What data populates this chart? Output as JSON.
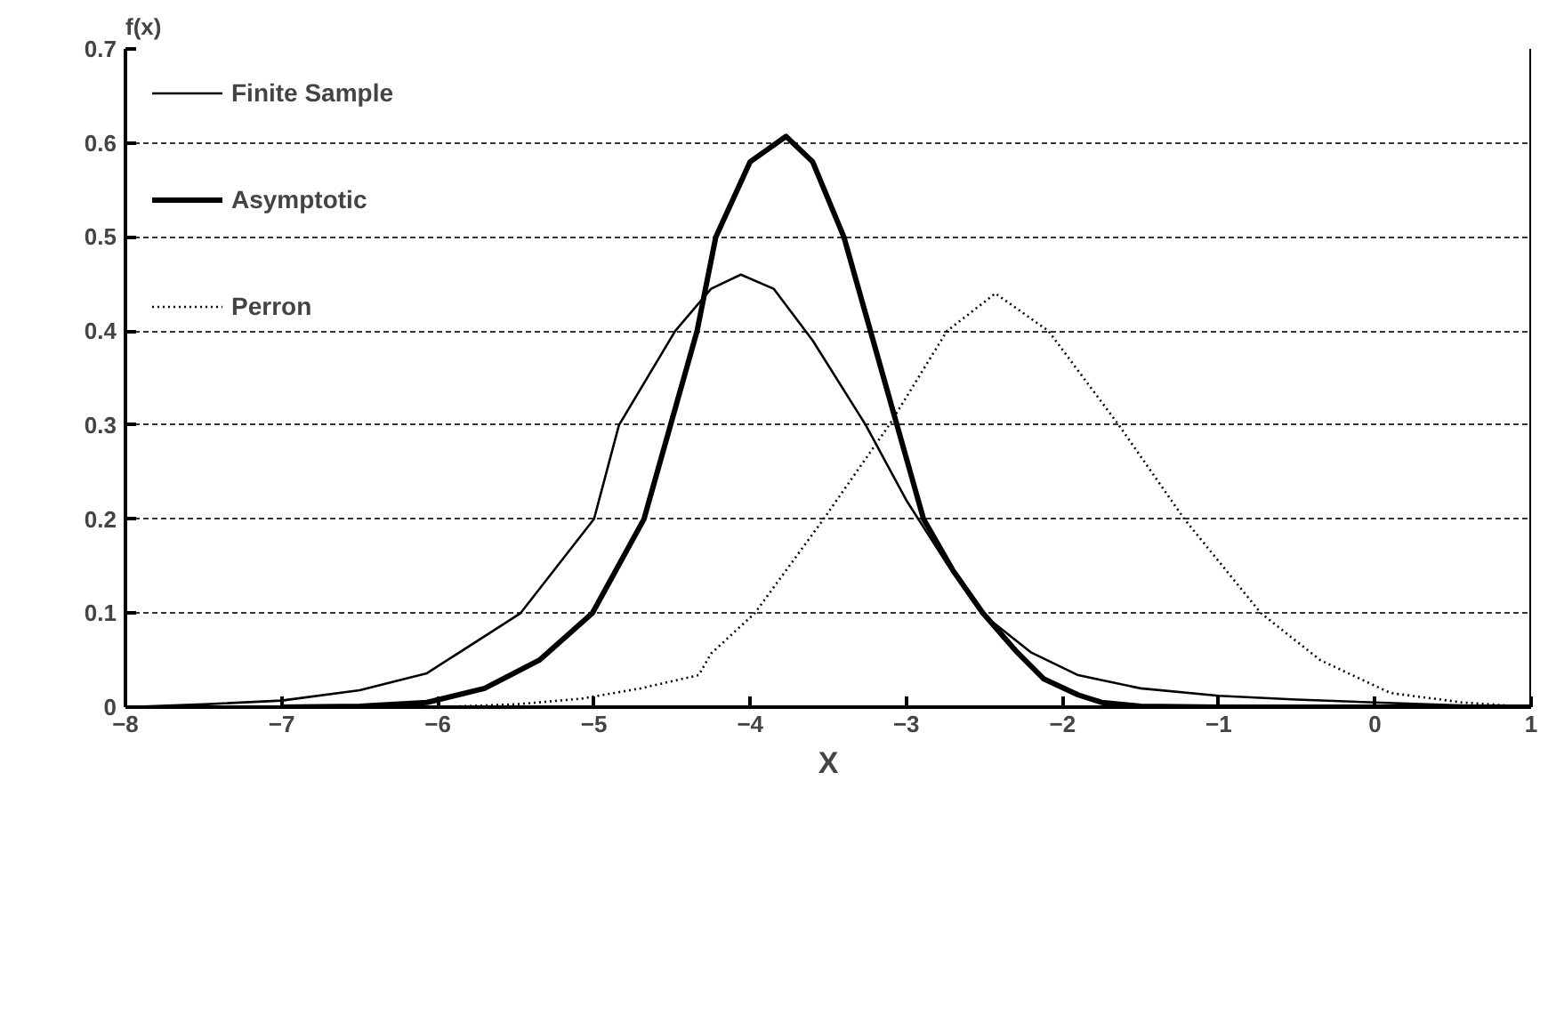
{
  "chart_data": {
    "type": "line",
    "xlabel": "X",
    "ylabel": "f(x)",
    "xlim": [
      -8,
      1
    ],
    "ylim": [
      0,
      0.7
    ],
    "xticks": [
      -8,
      -7,
      -6,
      -5,
      -4,
      -3,
      -2,
      -1,
      0,
      1
    ],
    "yticks": [
      0,
      0.1,
      0.2,
      0.3,
      0.4,
      0.5,
      0.6,
      0.7
    ],
    "grid": "y",
    "legend": "top left",
    "series": [
      {
        "name": "Finite Sample",
        "color": "#000000",
        "line_style": "solid",
        "x": [
          -8,
          -7.5,
          -7,
          -6.5,
          -6.07,
          -5.47,
          -5.0,
          -4.84,
          -4.48,
          -4.25,
          -4.06,
          -3.85,
          -3.6,
          -3.26,
          -3.0,
          -2.75,
          -2.52,
          -2.2,
          -1.9,
          -1.5,
          -1,
          -0.5,
          0,
          0.5,
          1
        ],
        "values": [
          0,
          0.003,
          0.007,
          0.018,
          0.036,
          0.1,
          0.2,
          0.3,
          0.4,
          0.445,
          0.46,
          0.445,
          0.39,
          0.3,
          0.22,
          0.155,
          0.1,
          0.058,
          0.034,
          0.02,
          0.012,
          0.008,
          0.005,
          0.002,
          0
        ]
      },
      {
        "name": "Asymptotic",
        "color": "#000000",
        "line_style": "solid",
        "x": [
          -7,
          -6.5,
          -6.07,
          -5.7,
          -5.35,
          -5.01,
          -4.68,
          -4.51,
          -4.34,
          -4.22,
          -4.0,
          -3.77,
          -3.6,
          -3.4,
          -3.23,
          -3.06,
          -2.89,
          -2.7,
          -2.51,
          -2.3,
          -2.12,
          -1.9,
          -1.75,
          -1.5,
          -1,
          0,
          1
        ],
        "values": [
          0,
          0.001,
          0.005,
          0.02,
          0.05,
          0.1,
          0.2,
          0.3,
          0.4,
          0.5,
          0.58,
          0.607,
          0.58,
          0.5,
          0.4,
          0.3,
          0.2,
          0.145,
          0.1,
          0.06,
          0.03,
          0.013,
          0.005,
          0.001,
          0,
          0,
          0
        ]
      },
      {
        "name": "Perron",
        "color": "#000000",
        "line_style": "dotted",
        "x": [
          -6,
          -5.5,
          -5.08,
          -4.7,
          -4.33,
          -4.25,
          -3.97,
          -3.53,
          -3.11,
          -2.74,
          -2.43,
          -2.09,
          -1.64,
          -1.22,
          -0.73,
          -0.35,
          0.1,
          0.56,
          1
        ],
        "values": [
          0,
          0.003,
          0.009,
          0.02,
          0.034,
          0.057,
          0.1,
          0.2,
          0.3,
          0.4,
          0.44,
          0.4,
          0.3,
          0.2,
          0.1,
          0.05,
          0.015,
          0.005,
          0
        ]
      }
    ]
  }
}
